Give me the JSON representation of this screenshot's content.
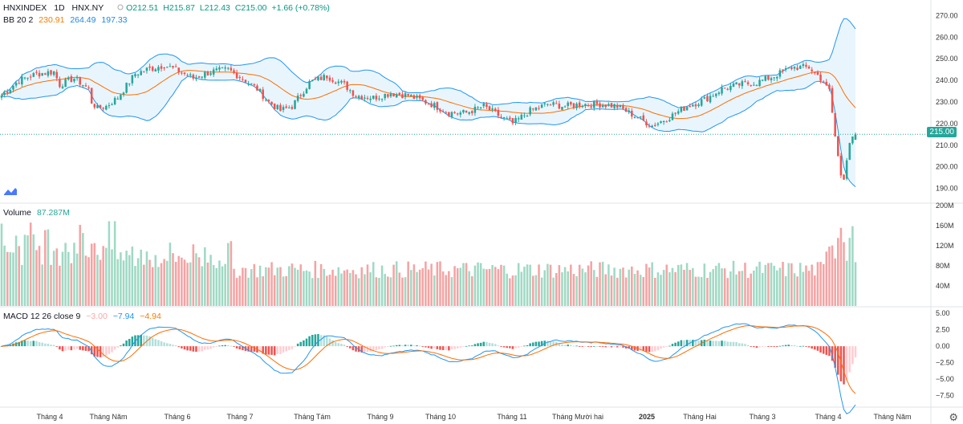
{
  "header": {
    "symbol": "HNXINDEX",
    "interval": "1D",
    "exchange": "HNX.NY",
    "open": "O212.51",
    "high": "H215.87",
    "low": "L212.43",
    "close": "C215.00",
    "change": "+1.66 (+0.78%)"
  },
  "bb_legend": {
    "name": "BB 20 2",
    "basis": "230.91",
    "upper": "264.49",
    "lower": "197.33"
  },
  "volume_legend": {
    "name": "Volume",
    "value": "87.287M"
  },
  "macd_legend": {
    "name": "MACD 12 26 close 9",
    "hist": "−3.00",
    "macd": "−7.94",
    "signal": "−4.94"
  },
  "last_price_label": "215.00",
  "colors": {
    "up": "#26a69a",
    "down": "#ef5350",
    "bb_line": "#2196f3",
    "basis": "#ff6d00",
    "vol_up": "#9fd9c4",
    "vol_down": "#f5a3a3",
    "bb_fill": "#e3f2fd"
  },
  "chart_data": [
    {
      "type": "candlestick",
      "title": "HNXINDEX 1D HNX.NY",
      "ylim": [
        185,
        272
      ],
      "y_ticks": [
        "270.00",
        "260.00",
        "250.00",
        "240.00",
        "230.00",
        "220.00",
        "210.00",
        "200.00",
        "190.00"
      ],
      "x_labels": [
        "Tháng 4",
        "Tháng Năm",
        "Tháng 6",
        "Tháng 7",
        "Tháng Tám",
        "Tháng 9",
        "Tháng 10",
        "Tháng 11",
        "Tháng Mười hai",
        "2025",
        "Tháng Hai",
        "Tháng 3",
        "Tháng 4",
        "Tháng Năm"
      ],
      "close_anchors": [
        [
          0,
          233
        ],
        [
          6,
          240
        ],
        [
          12,
          243
        ],
        [
          18,
          244
        ],
        [
          20,
          238
        ],
        [
          25,
          241
        ],
        [
          30,
          236
        ],
        [
          31,
          230
        ],
        [
          33,
          227
        ],
        [
          36,
          228
        ],
        [
          40,
          232
        ],
        [
          46,
          243
        ],
        [
          50,
          245
        ],
        [
          56,
          247
        ],
        [
          60,
          245
        ],
        [
          66,
          241
        ],
        [
          72,
          244
        ],
        [
          78,
          245
        ],
        [
          84,
          240
        ],
        [
          88,
          236
        ],
        [
          92,
          230
        ],
        [
          96,
          226
        ],
        [
          100,
          228
        ],
        [
          106,
          239
        ],
        [
          112,
          242
        ],
        [
          118,
          238
        ],
        [
          122,
          233
        ],
        [
          128,
          232
        ],
        [
          134,
          234
        ],
        [
          140,
          233
        ],
        [
          148,
          229
        ],
        [
          154,
          225
        ],
        [
          160,
          225
        ],
        [
          166,
          228
        ],
        [
          172,
          223
        ],
        [
          176,
          220
        ],
        [
          182,
          226
        ],
        [
          188,
          229
        ],
        [
          194,
          228
        ],
        [
          200,
          229
        ],
        [
          206,
          229
        ],
        [
          212,
          228
        ],
        [
          216,
          225
        ],
        [
          220,
          222
        ],
        [
          224,
          219
        ],
        [
          230,
          223
        ],
        [
          236,
          228
        ],
        [
          242,
          231
        ],
        [
          248,
          236
        ],
        [
          254,
          238
        ],
        [
          260,
          239
        ],
        [
          266,
          242
        ],
        [
          272,
          246
        ],
        [
          278,
          246
        ],
        [
          282,
          241
        ],
        [
          285,
          236
        ],
        [
          287,
          214
        ],
        [
          289,
          196
        ],
        [
          290,
          194
        ],
        [
          291,
          203
        ],
        [
          292,
          211
        ],
        [
          293,
          214
        ],
        [
          294,
          215
        ]
      ],
      "last_close": 215.0
    },
    {
      "type": "bar",
      "title": "Volume",
      "y_ticks": [
        "200M",
        "160M",
        "120M",
        "80M",
        "40M"
      ],
      "last_value": "87.287M"
    },
    {
      "type": "line",
      "title": "MACD 12 26 close 9",
      "y_ticks": [
        "5.00",
        "2.50",
        "0.00",
        "−2.50",
        "−5.00",
        "−7.50"
      ],
      "series": [
        {
          "name": "MACD",
          "last": -7.94
        },
        {
          "name": "Signal",
          "last": -4.94
        },
        {
          "name": "Histogram",
          "last": -3.0
        }
      ]
    }
  ]
}
